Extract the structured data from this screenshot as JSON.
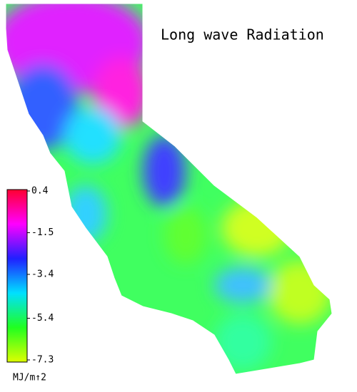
{
  "title": "Long wave Radiation",
  "legend": {
    "range": [
      -7.3,
      0.4
    ],
    "ticks": [
      0.4,
      -1.5,
      -3.4,
      -5.4,
      -7.3
    ],
    "unit": "MJ/m↑2",
    "colors": [
      "#ff0030",
      "#ff00ff",
      "#2020ff",
      "#00e0ff",
      "#20ff20",
      "#ddff00"
    ]
  }
}
